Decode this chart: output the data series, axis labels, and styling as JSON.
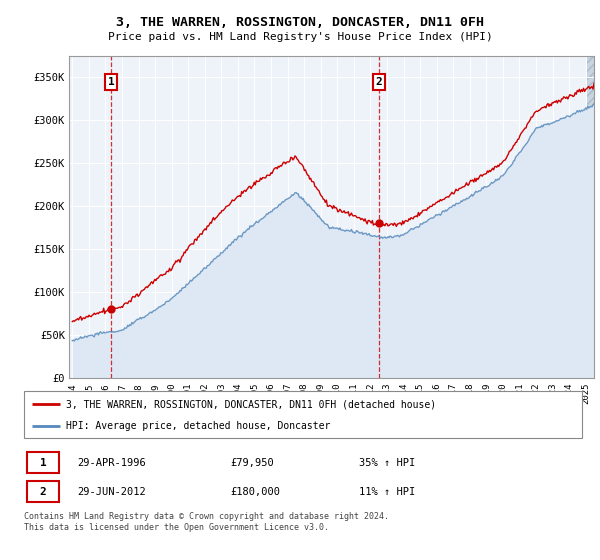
{
  "title": "3, THE WARREN, ROSSINGTON, DONCASTER, DN11 0FH",
  "subtitle": "Price paid vs. HM Land Registry's House Price Index (HPI)",
  "legend_line1": "3, THE WARREN, ROSSINGTON, DONCASTER, DN11 0FH (detached house)",
  "legend_line2": "HPI: Average price, detached house, Doncaster",
  "annotation1_date": "29-APR-1996",
  "annotation1_price": "£79,950",
  "annotation1_hpi": "35% ↑ HPI",
  "annotation2_date": "29-JUN-2012",
  "annotation2_price": "£180,000",
  "annotation2_hpi": "11% ↑ HPI",
  "footer": "Contains HM Land Registry data © Crown copyright and database right 2024.\nThis data is licensed under the Open Government Licence v3.0.",
  "red_color": "#cc0000",
  "blue_color": "#5588bb",
  "blue_fill_color": "#dde8f4",
  "bg_color": "#eef3f9",
  "hatch_color": "#cccccc",
  "ylim": [
    0,
    375000
  ],
  "yticks": [
    0,
    50000,
    100000,
    150000,
    200000,
    250000,
    300000,
    350000
  ],
  "ytick_labels": [
    "£0",
    "£50K",
    "£100K",
    "£150K",
    "£200K",
    "£250K",
    "£300K",
    "£350K"
  ],
  "purchase1_x": 1996.33,
  "purchase1_y": 79950,
  "purchase2_x": 2012.5,
  "purchase2_y": 180000,
  "xmin": 1994,
  "xmax": 2025.5,
  "hatch_left_end": 1994.0,
  "hatch_right_start": 2025.0
}
